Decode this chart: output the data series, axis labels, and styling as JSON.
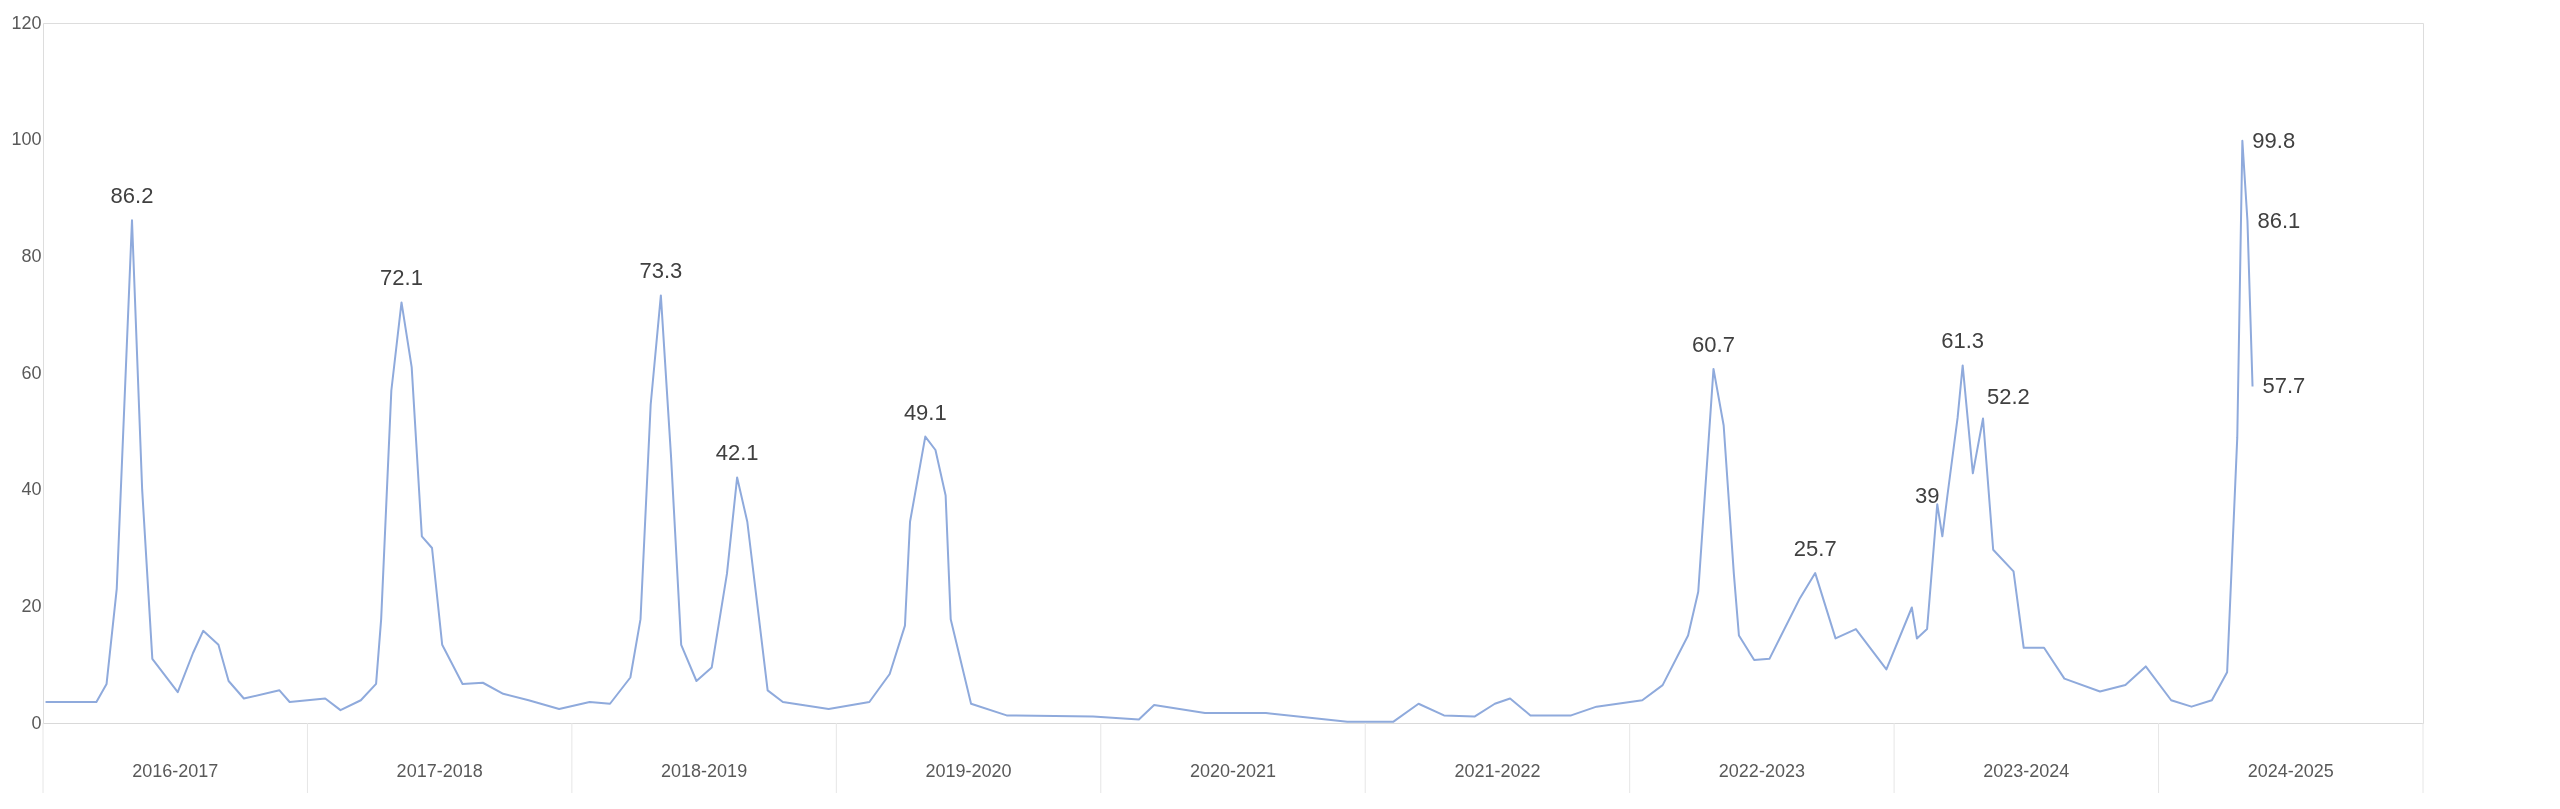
{
  "chart_data": {
    "type": "line",
    "categories": [
      null,
      null,
      null,
      null,
      null,
      null,
      null,
      null,
      null,
      null,
      null,
      null,
      null,
      null,
      null,
      null,
      null,
      null,
      null,
      null,
      null,
      null,
      null,
      null,
      null,
      null,
      null,
      null,
      null,
      null,
      null,
      null,
      null,
      null,
      null,
      null,
      null,
      null,
      null,
      null,
      null,
      null,
      null,
      null,
      null,
      null,
      null,
      null,
      null,
      null,
      null,
      null,
      null,
      null,
      null,
      null,
      null,
      null,
      null,
      null,
      null,
      null,
      null,
      null,
      null,
      null,
      null,
      null,
      null,
      null,
      null,
      null,
      null,
      null,
      null,
      null,
      null,
      null,
      null,
      null,
      null,
      null,
      null,
      null,
      null,
      null,
      null,
      null,
      null,
      null,
      null,
      null,
      null,
      null,
      null,
      null,
      null,
      null,
      null,
      null,
      null,
      null,
      null,
      null,
      null,
      null,
      null,
      null,
      null,
      null,
      null,
      null,
      null,
      null,
      null,
      null,
      null,
      null,
      null,
      null,
      null,
      null,
      null,
      null,
      null,
      null,
      null,
      null,
      null,
      null,
      null,
      null,
      null,
      null,
      null,
      null,
      null,
      null,
      null,
      null,
      null,
      null,
      null,
      null,
      null,
      null,
      null,
      null,
      null,
      null,
      null,
      null,
      null,
      null,
      null,
      null,
      null,
      null,
      null,
      null,
      null,
      null,
      null,
      null,
      null,
      null,
      null,
      null,
      null,
      null,
      null,
      null,
      null,
      null,
      null,
      null,
      null,
      null,
      null,
      null,
      null,
      null,
      null,
      null,
      null,
      null,
      null,
      null,
      null,
      null,
      null,
      null,
      null,
      null,
      null,
      null,
      null,
      null,
      null,
      null,
      null,
      null,
      null,
      null,
      null,
      null,
      null,
      null,
      null,
      null,
      null,
      null,
      null,
      null,
      null,
      null,
      null,
      null,
      null,
      null,
      null,
      null,
      null,
      null,
      null,
      null,
      null,
      null,
      null,
      null,
      null,
      null,
      null,
      null,
      null,
      null,
      null,
      null,
      null,
      null,
      null,
      null,
      null,
      null,
      null,
      null,
      null,
      null,
      null,
      null,
      null,
      null,
      null,
      null,
      null,
      null,
      null,
      null,
      null,
      null,
      null,
      null,
      null,
      null,
      null,
      null,
      null,
      null,
      null,
      null,
      null,
      null,
      null,
      null,
      null,
      null,
      null,
      null,
      null,
      null,
      null,
      null,
      null,
      null,
      null,
      null,
      null,
      null,
      null,
      null,
      null,
      null,
      null,
      null,
      null,
      null,
      null,
      null,
      null,
      null,
      null,
      null,
      null,
      null,
      null,
      null,
      null,
      null,
      null,
      null,
      null,
      null,
      null,
      null,
      null,
      null,
      null,
      null,
      null,
      null,
      null,
      null,
      null,
      null,
      null,
      null,
      null,
      null,
      null,
      null,
      null,
      null,
      null,
      null,
      null,
      null,
      null,
      null,
      null,
      null,
      null,
      null,
      null,
      null,
      null,
      null,
      null,
      null,
      null,
      null,
      null,
      null,
      null,
      null,
      null,
      null,
      null,
      null,
      null,
      null,
      null,
      null,
      null,
      null,
      null,
      null,
      null,
      null,
      null,
      null,
      null,
      null,
      null,
      null,
      null,
      null,
      null,
      null,
      null,
      null,
      null,
      null,
      null,
      null,
      null,
      null,
      null,
      null,
      null,
      null,
      null,
      null,
      null,
      null,
      null,
      null,
      null,
      null,
      null,
      null,
      null,
      null,
      null,
      null,
      null,
      null,
      null,
      null,
      null,
      null,
      null,
      null,
      null,
      null,
      null,
      null,
      null,
      null,
      null,
      null,
      null,
      null,
      null,
      null,
      null,
      null,
      null,
      null,
      null,
      null,
      null,
      null,
      null,
      null,
      null
    ],
    "series": [
      {
        "color": "#8faadc",
        "values": [
          3.6,
          null,
          null,
          null,
          null,
          null,
          null,
          null,
          null,
          null,
          3.6,
          null,
          6.7,
          null,
          23,
          null,
          null,
          86.2,
          null,
          40,
          null,
          11,
          null,
          null,
          null,
          null,
          5.3,
          null,
          null,
          12,
          null,
          15.8,
          null,
          null,
          13.4,
          null,
          7.2,
          null,
          null,
          4.2,
          null,
          null,
          null,
          null,
          null,
          null,
          5.6,
          null,
          3.6,
          null,
          null,
          null,
          null,
          null,
          null,
          4.2,
          null,
          null,
          2.2,
          null,
          null,
          null,
          3.9,
          null,
          null,
          6.7,
          17.8,
          null,
          57,
          null,
          72.1,
          null,
          61,
          null,
          32,
          null,
          30,
          null,
          13.4,
          null,
          null,
          null,
          6.7,
          null,
          null,
          null,
          6.9,
          null,
          null,
          null,
          5,
          null,
          null,
          null,
          null,
          3.9,
          null,
          null,
          null,
          null,
          null,
          2.4,
          null,
          null,
          null,
          null,
          null,
          3.6,
          null,
          null,
          null,
          3.3,
          null,
          null,
          null,
          7.8,
          null,
          17.8,
          null,
          54.6,
          null,
          73.3,
          null,
          45.7,
          null,
          13.4,
          null,
          null,
          7.2,
          null,
          null,
          9.5,
          null,
          null,
          25.6,
          null,
          42.1,
          null,
          34.5,
          null,
          null,
          null,
          5.6,
          null,
          null,
          3.6,
          null,
          null,
          null,
          null,
          null,
          null,
          null,
          null,
          2.4,
          null,
          null,
          null,
          null,
          null,
          null,
          null,
          3.6,
          null,
          null,
          null,
          8.4,
          null,
          null,
          16.7,
          34.5,
          null,
          null,
          49.1,
          null,
          46.8,
          null,
          39,
          17.8,
          null,
          null,
          null,
          3.3,
          null,
          null,
          null,
          null,
          null,
          null,
          1.3,
          null,
          null,
          null,
          null,
          null,
          null,
          null,
          null,
          null,
          null,
          null,
          null,
          null,
          null,
          null,
          null,
          1.1,
          null,
          null,
          null,
          null,
          null,
          null,
          null,
          null,
          0.6,
          null,
          null,
          3.1,
          null,
          null,
          null,
          null,
          null,
          null,
          null,
          null,
          null,
          1.7,
          null,
          null,
          null,
          null,
          null,
          null,
          null,
          null,
          null,
          null,
          null,
          1.7,
          null,
          null,
          null,
          null,
          null,
          null,
          null,
          null,
          null,
          null,
          null,
          null,
          null,
          null,
          null,
          0.2,
          null,
          null,
          null,
          null,
          null,
          null,
          null,
          null,
          0.2,
          null,
          null,
          null,
          null,
          3.3,
          null,
          null,
          null,
          null,
          1.3,
          null,
          null,
          null,
          null,
          null,
          1.1,
          null,
          null,
          null,
          3.3,
          null,
          null,
          4.2,
          null,
          null,
          null,
          1.3,
          null,
          null,
          null,
          null,
          null,
          null,
          null,
          1.3,
          null,
          null,
          null,
          null,
          2.8,
          null,
          null,
          null,
          null,
          null,
          null,
          null,
          null,
          3.9,
          null,
          null,
          null,
          6.5,
          null,
          null,
          null,
          null,
          15,
          null,
          22.5,
          null,
          null,
          60.7,
          null,
          51,
          null,
          25.6,
          15,
          null,
          null,
          10.8,
          null,
          null,
          11,
          null,
          null,
          null,
          null,
          null,
          21.4,
          null,
          null,
          25.7,
          null,
          null,
          null,
          14.5,
          null,
          null,
          null,
          16.1,
          null,
          null,
          null,
          null,
          null,
          9.2,
          null,
          null,
          null,
          null,
          19.8,
          14.5,
          null,
          16.1,
          null,
          37.5,
          32,
          39,
          null,
          52.3,
          61.3,
          null,
          42.8,
          null,
          52.2,
          null,
          29.7,
          null,
          null,
          null,
          26,
          null,
          12.9,
          null,
          null,
          null,
          12.9,
          null,
          null,
          null,
          7.6,
          null,
          null,
          null,
          null,
          null,
          null,
          5.4,
          null,
          null,
          null,
          null,
          6.5,
          null,
          null,
          null,
          9.7,
          null,
          null,
          null,
          null,
          3.9,
          null,
          null,
          null,
          2.8,
          null,
          null,
          null,
          3.9,
          null,
          null,
          8.7,
          null,
          49,
          99.8,
          86.1,
          57.7
        ],
        "value_labels": [
          null,
          null,
          null,
          null,
          null,
          null,
          null,
          null,
          null,
          null,
          null,
          null,
          null,
          null,
          null,
          null,
          null,
          "86.2",
          null,
          null,
          null,
          null,
          null,
          null,
          null,
          null,
          null,
          null,
          null,
          null,
          null,
          null,
          null,
          null,
          null,
          null,
          null,
          null,
          null,
          null,
          null,
          null,
          null,
          null,
          null,
          null,
          null,
          null,
          null,
          null,
          null,
          null,
          null,
          null,
          null,
          null,
          null,
          null,
          null,
          null,
          null,
          null,
          null,
          null,
          null,
          null,
          null,
          null,
          null,
          null,
          "72.1",
          null,
          null,
          null,
          null,
          null,
          null,
          null,
          null,
          null,
          null,
          null,
          null,
          null,
          null,
          null,
          null,
          null,
          null,
          null,
          null,
          null,
          null,
          null,
          null,
          null,
          null,
          null,
          null,
          null,
          null,
          null,
          null,
          null,
          null,
          null,
          null,
          null,
          null,
          null,
          null,
          null,
          null,
          null,
          null,
          null,
          null,
          null,
          null,
          null,
          null,
          "73.3",
          null,
          null,
          null,
          null,
          null,
          null,
          null,
          null,
          null,
          null,
          null,
          null,
          null,
          null,
          "42.1",
          null,
          null,
          null,
          null,
          null,
          null,
          null,
          null,
          null,
          null,
          null,
          null,
          null,
          null,
          null,
          null,
          null,
          null,
          null,
          null,
          null,
          null,
          null,
          null,
          null,
          null,
          null,
          null,
          null,
          null,
          null,
          null,
          null,
          null,
          null,
          null,
          "49.1",
          null,
          null,
          null,
          null,
          null,
          null,
          null,
          null,
          null,
          null,
          null,
          null,
          null,
          null,
          null,
          null,
          null,
          null,
          null,
          null,
          null,
          null,
          null,
          null,
          null,
          null,
          null,
          null,
          null,
          null,
          null,
          null,
          null,
          null,
          null,
          null,
          null,
          null,
          null,
          null,
          null,
          null,
          null,
          null,
          null,
          null,
          null,
          null,
          null,
          null,
          null,
          null,
          null,
          null,
          null,
          null,
          null,
          null,
          null,
          null,
          null,
          null,
          null,
          null,
          null,
          null,
          null,
          null,
          null,
          null,
          null,
          null,
          null,
          null,
          null,
          null,
          null,
          null,
          null,
          null,
          null,
          null,
          null,
          null,
          null,
          null,
          null,
          null,
          null,
          null,
          null,
          null,
          null,
          null,
          null,
          null,
          null,
          null,
          null,
          null,
          null,
          null,
          null,
          null,
          null,
          null,
          null,
          null,
          null,
          null,
          null,
          null,
          null,
          null,
          null,
          null,
          null,
          null,
          null,
          null,
          null,
          null,
          null,
          null,
          null,
          null,
          null,
          null,
          null,
          null,
          null,
          null,
          null,
          null,
          null,
          null,
          null,
          null,
          null,
          null,
          null,
          null,
          null,
          null,
          null,
          null,
          null,
          null,
          null,
          null,
          null,
          null,
          null,
          null,
          "60.7",
          null,
          null,
          null,
          null,
          null,
          null,
          null,
          null,
          null,
          null,
          null,
          null,
          null,
          null,
          null,
          null,
          null,
          null,
          null,
          "25.7",
          null,
          null,
          null,
          null,
          null,
          null,
          null,
          null,
          null,
          null,
          null,
          null,
          null,
          null,
          null,
          null,
          null,
          null,
          null,
          null,
          null,
          null,
          null,
          null,
          null,
          "39",
          null,
          null,
          "61.3",
          null,
          null,
          null,
          "52.2",
          null,
          null,
          null,
          null,
          null,
          null,
          null,
          null,
          null,
          null,
          null,
          null,
          null,
          null,
          null,
          null,
          null,
          null,
          null,
          null,
          null,
          null,
          null,
          null,
          null,
          null,
          null,
          null,
          null,
          null,
          null,
          null,
          null,
          null,
          null,
          null,
          null,
          null,
          null,
          null,
          null,
          null,
          null,
          null,
          null,
          null,
          null,
          null,
          null,
          null,
          "99.8",
          "86.1",
          "57.7"
        ]
      }
    ],
    "ylim": [
      0,
      120
    ],
    "yticks": [
      0,
      20,
      40,
      60,
      80,
      100,
      120
    ],
    "annotations": [
      "2016-2017",
      "2017-2018",
      "2018-2019",
      "2019-2020",
      "2020-2021",
      "2021-2022",
      "2022-2023",
      "2023-2024",
      "2024-2025"
    ]
  }
}
